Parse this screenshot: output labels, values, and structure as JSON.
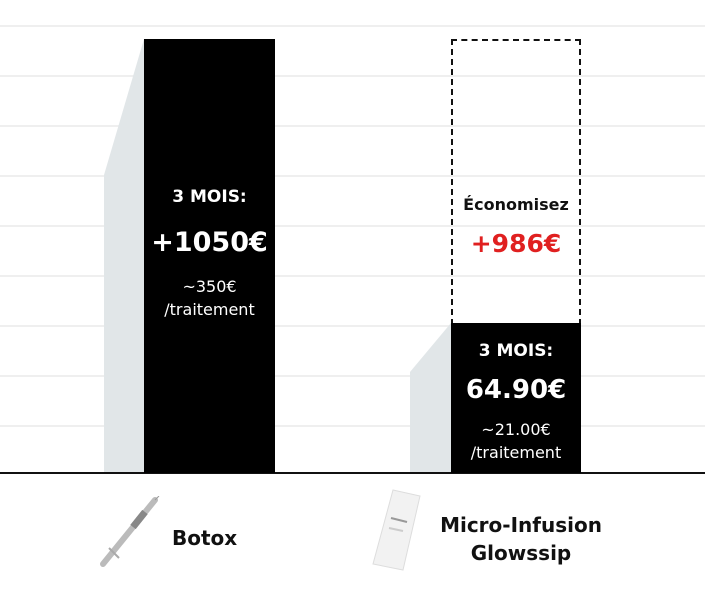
{
  "chart_data": {
    "type": "bar",
    "categories": [
      "Botox",
      "Micro-Infusion Glowssip"
    ],
    "values": [
      1050,
      64.9
    ],
    "unit": "€",
    "grid": true
  },
  "botox": {
    "period": "3 MOIS:",
    "total": "+1050€",
    "per_line1": "~350€",
    "per_line2": "/traitement",
    "label": "Botox",
    "icon": "syringe-icon"
  },
  "glowssip": {
    "save_label": "Économisez",
    "save_value": "+986€",
    "period": "3 MOIS:",
    "total": "64.90€",
    "per_line1": "~21.00€",
    "per_line2": "/traitement",
    "label_line1": "Micro-Infusion",
    "label_line2": "Glowssip",
    "icon": "product-box-icon"
  },
  "colors": {
    "bar": "#000000",
    "shadow": "#e1e6e8",
    "savings": "#e02020"
  }
}
